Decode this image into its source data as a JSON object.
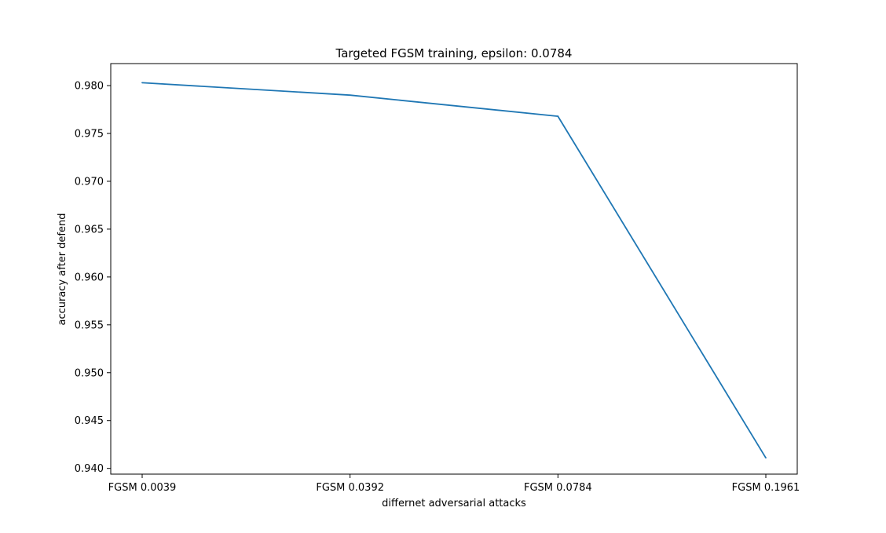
{
  "chart_data": {
    "type": "line",
    "title": "Targeted FGSM training, epsilon: 0.0784",
    "xlabel": "differnet adversarial attacks",
    "ylabel": "accuracy after defend",
    "categories": [
      "FGSM 0.0039",
      "FGSM 0.0392",
      "FGSM 0.0784",
      "FGSM 0.1961"
    ],
    "series": [
      {
        "values": [
          0.9803,
          0.979,
          0.9768,
          0.9411
        ],
        "color": "#1f77b4"
      }
    ],
    "ylim": [
      0.9394,
      0.9823
    ],
    "yticks": [
      0.94,
      0.945,
      0.95,
      0.955,
      0.96,
      0.965,
      0.97,
      0.975,
      0.98
    ],
    "ytick_labels": [
      "0.940",
      "0.945",
      "0.950",
      "0.955",
      "0.960",
      "0.965",
      "0.970",
      "0.975",
      "0.980"
    ],
    "grid": false,
    "legend": "none"
  }
}
